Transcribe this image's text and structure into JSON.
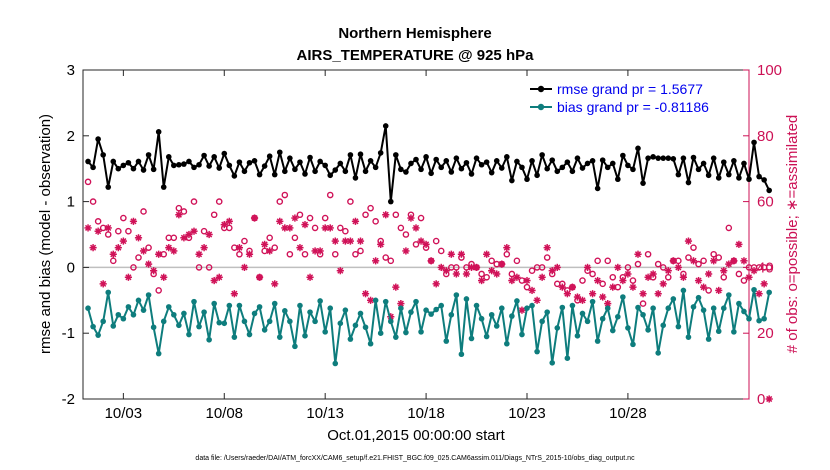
{
  "chart_data": {
    "type": "line",
    "title": "Northern Hemisphere",
    "subtitle": "AIRS_TEMPERATURE @ 925 hPa",
    "xlabel": "Oct.01,2015 00:00:00 start",
    "ylabel_left": "rmse and bias (model - observation)",
    "ylabel_right": "# of obs: o=possible; ∗=assimilated",
    "xlim": [
      0,
      33
    ],
    "ylim_left": [
      -2,
      3
    ],
    "ylim_right": [
      0,
      100
    ],
    "x_ticks": [
      2,
      7,
      12,
      17,
      22,
      27
    ],
    "x_tick_labels": [
      "10/03",
      "10/08",
      "10/13",
      "10/18",
      "10/23",
      "10/28"
    ],
    "y_ticks_left": [
      -2,
      -1,
      0,
      1,
      2,
      3
    ],
    "y_tick_labels_left": [
      "-2",
      "-1",
      "0",
      "1",
      "2",
      "3"
    ],
    "y_ticks_right": [
      0,
      20,
      40,
      60,
      80,
      100
    ],
    "y_tick_labels_right": [
      "0",
      "20",
      "40",
      "60",
      "80",
      "100"
    ],
    "zero_line": 0,
    "legend_position": "top-right",
    "series": [
      {
        "name": "rmse grand pr = 1.5677",
        "color": "#000000",
        "axis": "left",
        "x_start": 0.25,
        "x_step": 0.25,
        "values": [
          1.61,
          1.52,
          1.95,
          1.71,
          1.22,
          1.61,
          1.5,
          1.55,
          1.59,
          1.5,
          1.61,
          1.48,
          1.71,
          1.49,
          2.06,
          1.22,
          1.68,
          1.55,
          1.56,
          1.57,
          1.61,
          1.52,
          1.56,
          1.7,
          1.54,
          1.68,
          1.51,
          1.73,
          1.55,
          1.39,
          1.6,
          1.46,
          1.59,
          1.62,
          1.41,
          1.54,
          1.69,
          1.41,
          1.75,
          1.46,
          1.66,
          1.49,
          1.6,
          1.42,
          1.67,
          1.46,
          1.61,
          1.55,
          1.4,
          1.48,
          1.58,
          1.46,
          1.71,
          1.36,
          1.72,
          1.46,
          1.62,
          1.52,
          1.74,
          2.15,
          1.0,
          1.71,
          1.49,
          1.45,
          1.58,
          1.64,
          1.49,
          1.68,
          1.43,
          1.64,
          1.52,
          1.62,
          1.45,
          1.66,
          1.5,
          1.59,
          1.42,
          1.66,
          1.56,
          1.6,
          1.44,
          1.62,
          1.51,
          1.68,
          1.32,
          1.61,
          1.52,
          1.34,
          1.62,
          1.4,
          1.71,
          1.5,
          1.63,
          1.46,
          1.52,
          1.6,
          1.46,
          1.66,
          1.51,
          1.58,
          1.62,
          1.2,
          1.63,
          1.52,
          1.58,
          1.34,
          1.7,
          1.55,
          1.49,
          1.81,
          1.28,
          1.66,
          1.68,
          1.66,
          1.66,
          1.66,
          1.65,
          1.41,
          1.66,
          1.29,
          1.67,
          1.49,
          1.58,
          1.4,
          1.66,
          1.36,
          1.6,
          1.41,
          1.62,
          1.36,
          1.58,
          1.34,
          1.9,
          1.38,
          1.33,
          1.17
        ]
      },
      {
        "name": "bias grand pr = -0.81186",
        "color": "#0e7d7d",
        "axis": "left",
        "x_start": 0.25,
        "x_step": 0.25,
        "values": [
          -0.62,
          -0.9,
          -1.03,
          -0.82,
          -0.38,
          -0.89,
          -0.72,
          -0.78,
          -0.6,
          -0.72,
          -0.5,
          -0.65,
          -0.42,
          -0.91,
          -1.31,
          -0.82,
          -0.6,
          -0.72,
          -0.88,
          -0.7,
          -1.02,
          -0.52,
          -0.9,
          -0.68,
          -1.1,
          -0.55,
          -0.84,
          -0.85,
          -0.58,
          -1.06,
          -0.58,
          -0.82,
          -1.02,
          -0.7,
          -0.6,
          -0.95,
          -0.82,
          -0.55,
          -1.06,
          -0.66,
          -0.82,
          -1.2,
          -0.58,
          -1.04,
          -0.68,
          -0.82,
          -0.51,
          -0.98,
          -0.62,
          -1.46,
          -0.85,
          -0.65,
          -1.09,
          -0.88,
          -0.7,
          -0.91,
          -1.16,
          -0.5,
          -1.0,
          -0.52,
          -0.82,
          -1.06,
          -0.62,
          -0.99,
          -0.68,
          -0.52,
          -0.98,
          -0.65,
          -0.71,
          -0.64,
          -0.58,
          -1.12,
          -0.72,
          -0.42,
          -1.32,
          -0.48,
          -1.08,
          -0.58,
          -0.78,
          -1.05,
          -0.72,
          -0.89,
          -0.62,
          -1.16,
          -0.74,
          -0.51,
          -1.02,
          -0.62,
          -0.58,
          -1.28,
          -0.82,
          -0.68,
          -1.45,
          -0.92,
          -0.61,
          -1.38,
          -0.58,
          -1.04,
          -0.7,
          -0.82,
          -0.52,
          -1.12,
          -0.78,
          -0.62,
          -0.96,
          -0.75,
          -0.45,
          -0.92,
          -1.17,
          -0.61,
          -0.72,
          -0.95,
          -0.62,
          -1.3,
          -0.88,
          -0.62,
          -0.48,
          -0.9,
          -0.35,
          -1.06,
          -0.6,
          -0.46,
          -0.65,
          -1.09,
          -0.62,
          -0.97,
          -0.62,
          -0.42,
          -0.98,
          -0.55,
          -0.67,
          -0.78,
          -0.34,
          -0.81,
          -0.78,
          -0.38
        ]
      },
      {
        "name": "possible",
        "marker": "o",
        "color": "#d01258",
        "axis": "right",
        "x_start": 0.25,
        "x_step": 0.25,
        "values": [
          66,
          60,
          54,
          52,
          50,
          42,
          51,
          55,
          51,
          40,
          43,
          57,
          46,
          38,
          33,
          44,
          49,
          49,
          58,
          57,
          49,
          60,
          40,
          51,
          40,
          56,
          60,
          52,
          52,
          46,
          44,
          48,
          45,
          55,
          37,
          45,
          49,
          46,
          60,
          62,
          44,
          49,
          56,
          44,
          55,
          52,
          44,
          55,
          62,
          44,
          52,
          51,
          60,
          44,
          45,
          56,
          58,
          54,
          48,
          43,
          42,
          56,
          52,
          50,
          56,
          47,
          55,
          46,
          42,
          48,
          45,
          38,
          40,
          40,
          43,
          40,
          41,
          40,
          38,
          37,
          42,
          41,
          41,
          44,
          38,
          42,
          36,
          34,
          39,
          40,
          40,
          43,
          38,
          35,
          35,
          33,
          34,
          30,
          36,
          39,
          38,
          42,
          35,
          42,
          37,
          34,
          37,
          40,
          36,
          41,
          29,
          44,
          37,
          41,
          40,
          37,
          42,
          42,
          38,
          43,
          46,
          41,
          42,
          33,
          44,
          43,
          37,
          52,
          42,
          38,
          36,
          40,
          40,
          40,
          40,
          40
        ]
      },
      {
        "name": "assimilated",
        "marker": "*",
        "color": "#d01258",
        "axis": "right",
        "x_start": 0.25,
        "x_step": 0.25,
        "values": [
          52,
          46,
          51,
          35,
          52,
          44,
          46,
          48,
          37,
          54,
          49,
          45,
          41,
          39,
          44,
          37,
          46,
          45,
          56,
          49,
          50,
          51,
          44,
          46,
          50,
          36,
          37,
          53,
          54,
          32,
          46,
          40,
          44,
          55,
          37,
          47,
          45,
          35,
          54,
          52,
          52,
          55,
          46,
          53,
          37,
          45,
          45,
          52,
          52,
          48,
          39,
          48,
          48,
          54,
          48,
          32,
          30,
          42,
          47,
          56,
          25,
          34,
          29,
          45,
          55,
          52,
          48,
          47,
          42,
          35,
          40,
          39,
          44,
          38,
          44,
          38,
          40,
          40,
          36,
          44,
          39,
          38,
          41,
          46,
          36,
          37,
          27,
          36,
          33,
          30,
          37,
          46,
          39,
          40,
          34,
          32,
          34,
          31,
          30,
          40,
          32,
          36,
          31,
          29,
          34,
          40,
          36,
          38,
          34,
          44,
          32,
          37,
          38,
          32,
          35,
          39,
          42,
          40,
          37,
          48,
          42,
          36,
          34,
          38,
          42,
          33,
          39,
          41,
          42,
          47,
          42,
          37,
          39,
          32,
          35,
          0
        ]
      }
    ],
    "footnote": "data file: /Users/raeder/DAI/ATM_forcXX/CAM6_setup/f.e21.FHIST_BGC.f09_025.CAM6assim.011/Diags_NTrS_2015-10/obs_diag_output.nc"
  }
}
